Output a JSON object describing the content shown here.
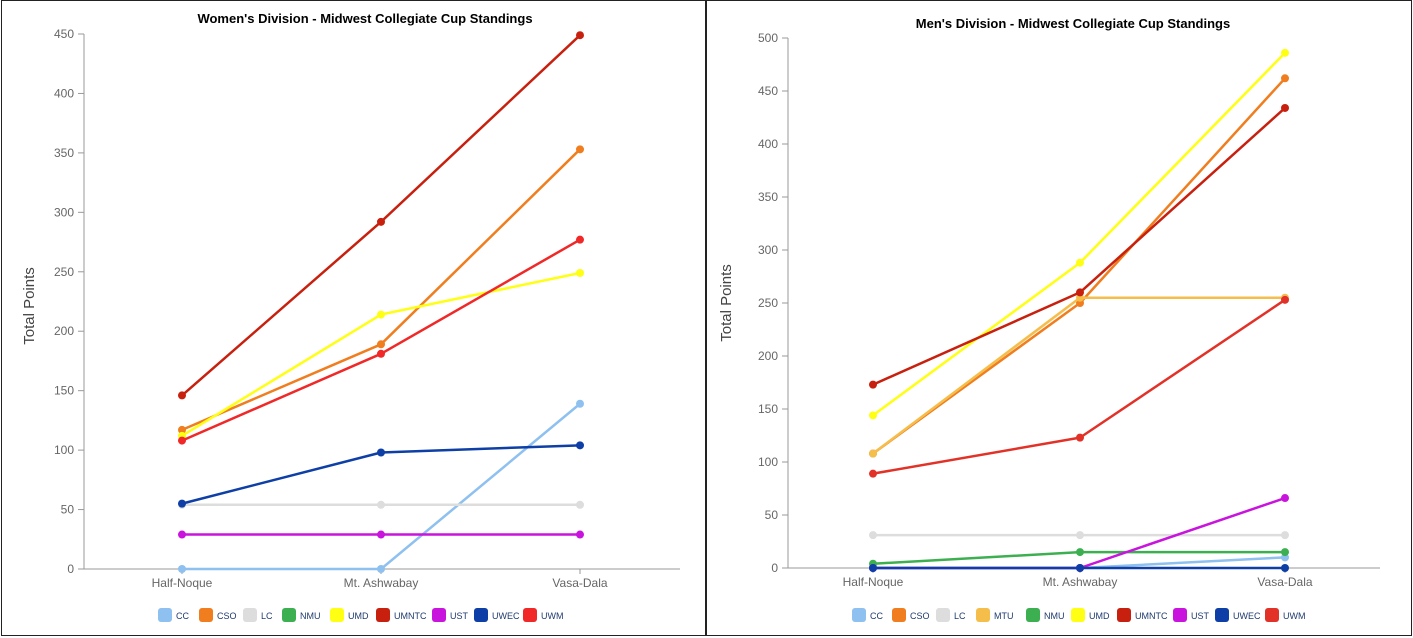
{
  "chart_data": [
    {
      "type": "line",
      "title": "Women's Division - Midwest Collegiate Cup Standings",
      "ylabel": "Total Points",
      "xlabel": "",
      "categories": [
        "Half-Noque",
        "Mt. Ashwabay",
        "Vasa-Dala"
      ],
      "ylim": [
        0,
        450
      ],
      "yticks": [
        0,
        50,
        100,
        150,
        200,
        250,
        300,
        350,
        400,
        450
      ],
      "legend_position": "bottom",
      "series": [
        {
          "name": "CC",
          "color": "#8ec0f0",
          "values": [
            0,
            0,
            139
          ]
        },
        {
          "name": "CSO",
          "color": "#f07d1e",
          "values": [
            117,
            189,
            353
          ]
        },
        {
          "name": "LC",
          "color": "#dddddd",
          "values": [
            54,
            54,
            54
          ]
        },
        {
          "name": "NMU",
          "color": "#3cb050",
          "values": [
            null,
            null,
            null
          ]
        },
        {
          "name": "UMD",
          "color": "#ffff14",
          "values": [
            112,
            214,
            249
          ]
        },
        {
          "name": "UMNTC",
          "color": "#c8200e",
          "values": [
            146,
            292,
            449
          ]
        },
        {
          "name": "UST",
          "color": "#c814dc",
          "values": [
            29,
            29,
            29
          ]
        },
        {
          "name": "UWEC",
          "color": "#0e3fa6",
          "values": [
            55,
            98,
            104
          ]
        },
        {
          "name": "UWM",
          "color": "#f02828",
          "values": [
            108,
            181,
            277
          ]
        }
      ]
    },
    {
      "type": "line",
      "title": "Men's Division - Midwest Collegiate Cup Standings",
      "ylabel": "Total Points",
      "xlabel": "",
      "categories": [
        "Half-Noque",
        "Mt. Ashwabay",
        "Vasa-Dala"
      ],
      "ylim": [
        0,
        500
      ],
      "yticks": [
        0,
        50,
        100,
        150,
        200,
        250,
        300,
        350,
        400,
        450,
        500
      ],
      "legend_position": "bottom",
      "series": [
        {
          "name": "CC",
          "color": "#8ec0f0",
          "values": [
            0,
            0,
            10
          ]
        },
        {
          "name": "CSO",
          "color": "#f07d1e",
          "values": [
            108,
            250,
            462
          ]
        },
        {
          "name": "LC",
          "color": "#dddddd",
          "values": [
            31,
            31,
            31
          ]
        },
        {
          "name": "MTU",
          "color": "#f5be4b",
          "values": [
            108,
            255,
            255
          ]
        },
        {
          "name": "NMU",
          "color": "#3cb050",
          "values": [
            4,
            15,
            15
          ]
        },
        {
          "name": "UMD",
          "color": "#ffff14",
          "values": [
            144,
            288,
            486
          ]
        },
        {
          "name": "UMNTC",
          "color": "#c8200e",
          "values": [
            173,
            260,
            434
          ]
        },
        {
          "name": "UST",
          "color": "#c814dc",
          "values": [
            0,
            0,
            66
          ]
        },
        {
          "name": "UWEC",
          "color": "#0e3fa6",
          "values": [
            0,
            0,
            0
          ]
        },
        {
          "name": "UWM",
          "color": "#e23228",
          "values": [
            89,
            123,
            253
          ]
        }
      ]
    }
  ]
}
